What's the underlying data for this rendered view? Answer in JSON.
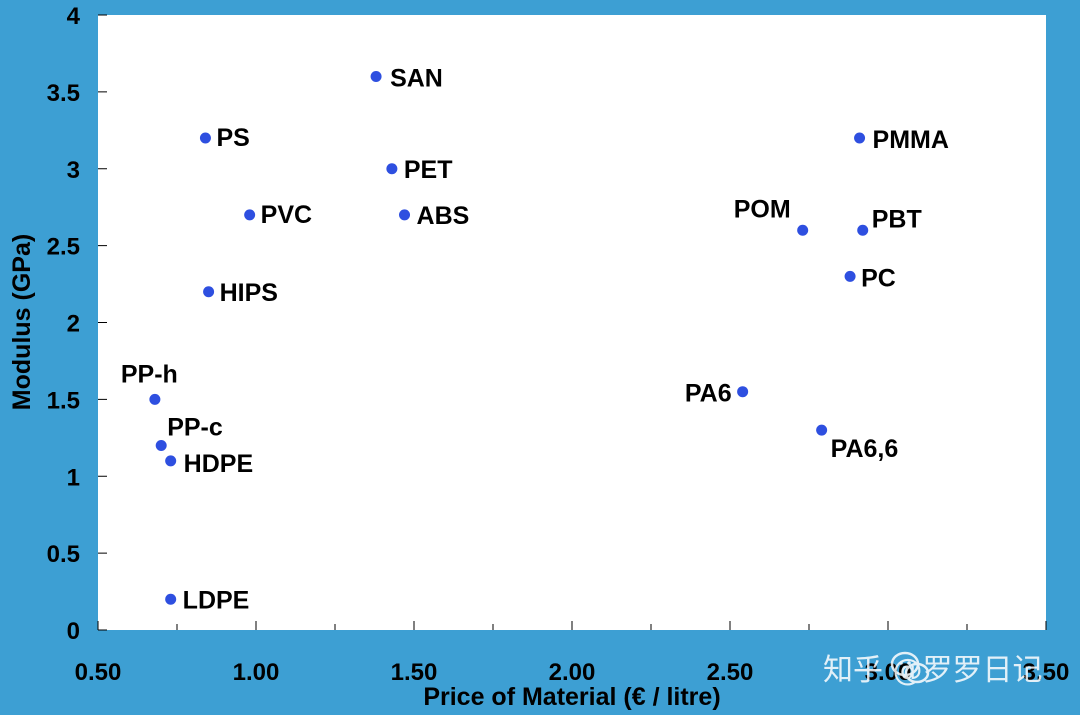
{
  "chart_data": {
    "type": "scatter",
    "xlabel": "Price of Material (€ / litre)",
    "ylabel": "Modulus (GPa)",
    "xlim": [
      0.5,
      3.5
    ],
    "ylim": [
      0,
      4
    ],
    "xticks": [
      "0.50",
      "1.00",
      "1.50",
      "2.00",
      "2.50",
      "3.00",
      "3.50"
    ],
    "yticks": [
      "0",
      "0.5",
      "1",
      "1.5",
      "2",
      "2.5",
      "3",
      "3.5",
      "4"
    ],
    "grid": false,
    "point_color": "#2e4fe0",
    "points": [
      {
        "label": "SAN",
        "x": 1.38,
        "y": 3.6
      },
      {
        "label": "PS",
        "x": 0.84,
        "y": 3.2
      },
      {
        "label": "PET",
        "x": 1.43,
        "y": 3.0
      },
      {
        "label": "PVC",
        "x": 0.98,
        "y": 2.7
      },
      {
        "label": "ABS",
        "x": 1.47,
        "y": 2.7
      },
      {
        "label": "HIPS",
        "x": 0.85,
        "y": 2.2
      },
      {
        "label": "PP-h",
        "x": 0.68,
        "y": 1.5
      },
      {
        "label": "PP-c",
        "x": 0.7,
        "y": 1.2
      },
      {
        "label": "HDPE",
        "x": 0.73,
        "y": 1.1
      },
      {
        "label": "LDPE",
        "x": 0.73,
        "y": 0.2
      },
      {
        "label": "PMMA",
        "x": 2.91,
        "y": 3.2
      },
      {
        "label": "POM",
        "x": 2.73,
        "y": 2.6
      },
      {
        "label": "PBT",
        "x": 2.92,
        "y": 2.6
      },
      {
        "label": "PC",
        "x": 2.88,
        "y": 2.3
      },
      {
        "label": "PA6",
        "x": 2.54,
        "y": 1.55
      },
      {
        "label": "PA6,6",
        "x": 2.79,
        "y": 1.3
      }
    ]
  },
  "watermark": {
    "text": "知乎 @罗罗日记",
    "icon": "wechat-bubble-icon"
  }
}
